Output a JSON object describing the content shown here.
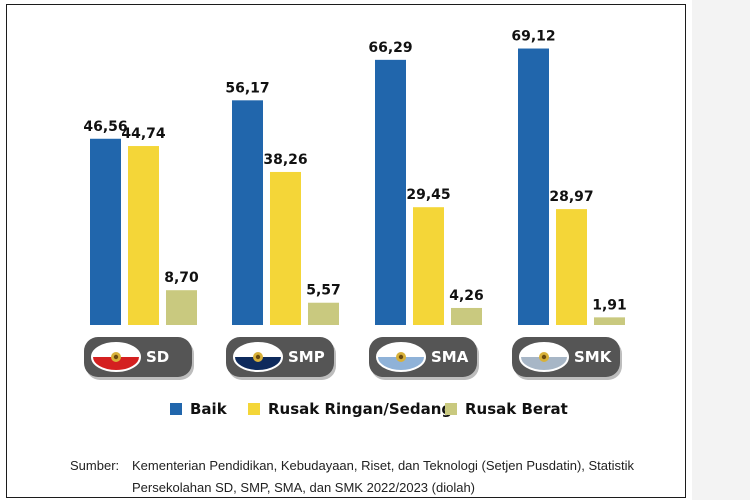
{
  "chart_data": {
    "type": "bar",
    "categories": [
      "SD",
      "SMP",
      "SMA",
      "SMK"
    ],
    "series": [
      {
        "name": "Baik",
        "values": [
          46.56,
          56.17,
          66.29,
          69.12
        ],
        "labels": [
          "46,56",
          "56,17",
          "66,29",
          "69,12"
        ]
      },
      {
        "name": "Rusak Ringan/Sedang",
        "values": [
          44.74,
          38.26,
          29.45,
          28.97
        ],
        "labels": [
          "44,74",
          "38,26",
          "29,45",
          "28,97"
        ]
      },
      {
        "name": "Rusak Berat",
        "values": [
          8.7,
          5.57,
          4.26,
          1.91
        ],
        "labels": [
          "8,70",
          "5,57",
          "4,26",
          "1,91"
        ]
      }
    ],
    "ylim": [
      0,
      75
    ],
    "grid": false,
    "legend_position": "bottom"
  },
  "colors": {
    "baik": "#2166ac",
    "rusak_ringan": "#f4d638",
    "rusak_berat": "#c9c97f",
    "pill": "#555555"
  },
  "icons": [
    "school-flag-badge-icon"
  ],
  "source": {
    "label": "Sumber:",
    "text": "Kementerian Pendidikan, Kebudayaan, Riset, dan Teknologi (Setjen Pusdatin), Statistik Persekolahan SD, SMP, SMA, dan SMK 2022/2023 (diolah)"
  }
}
